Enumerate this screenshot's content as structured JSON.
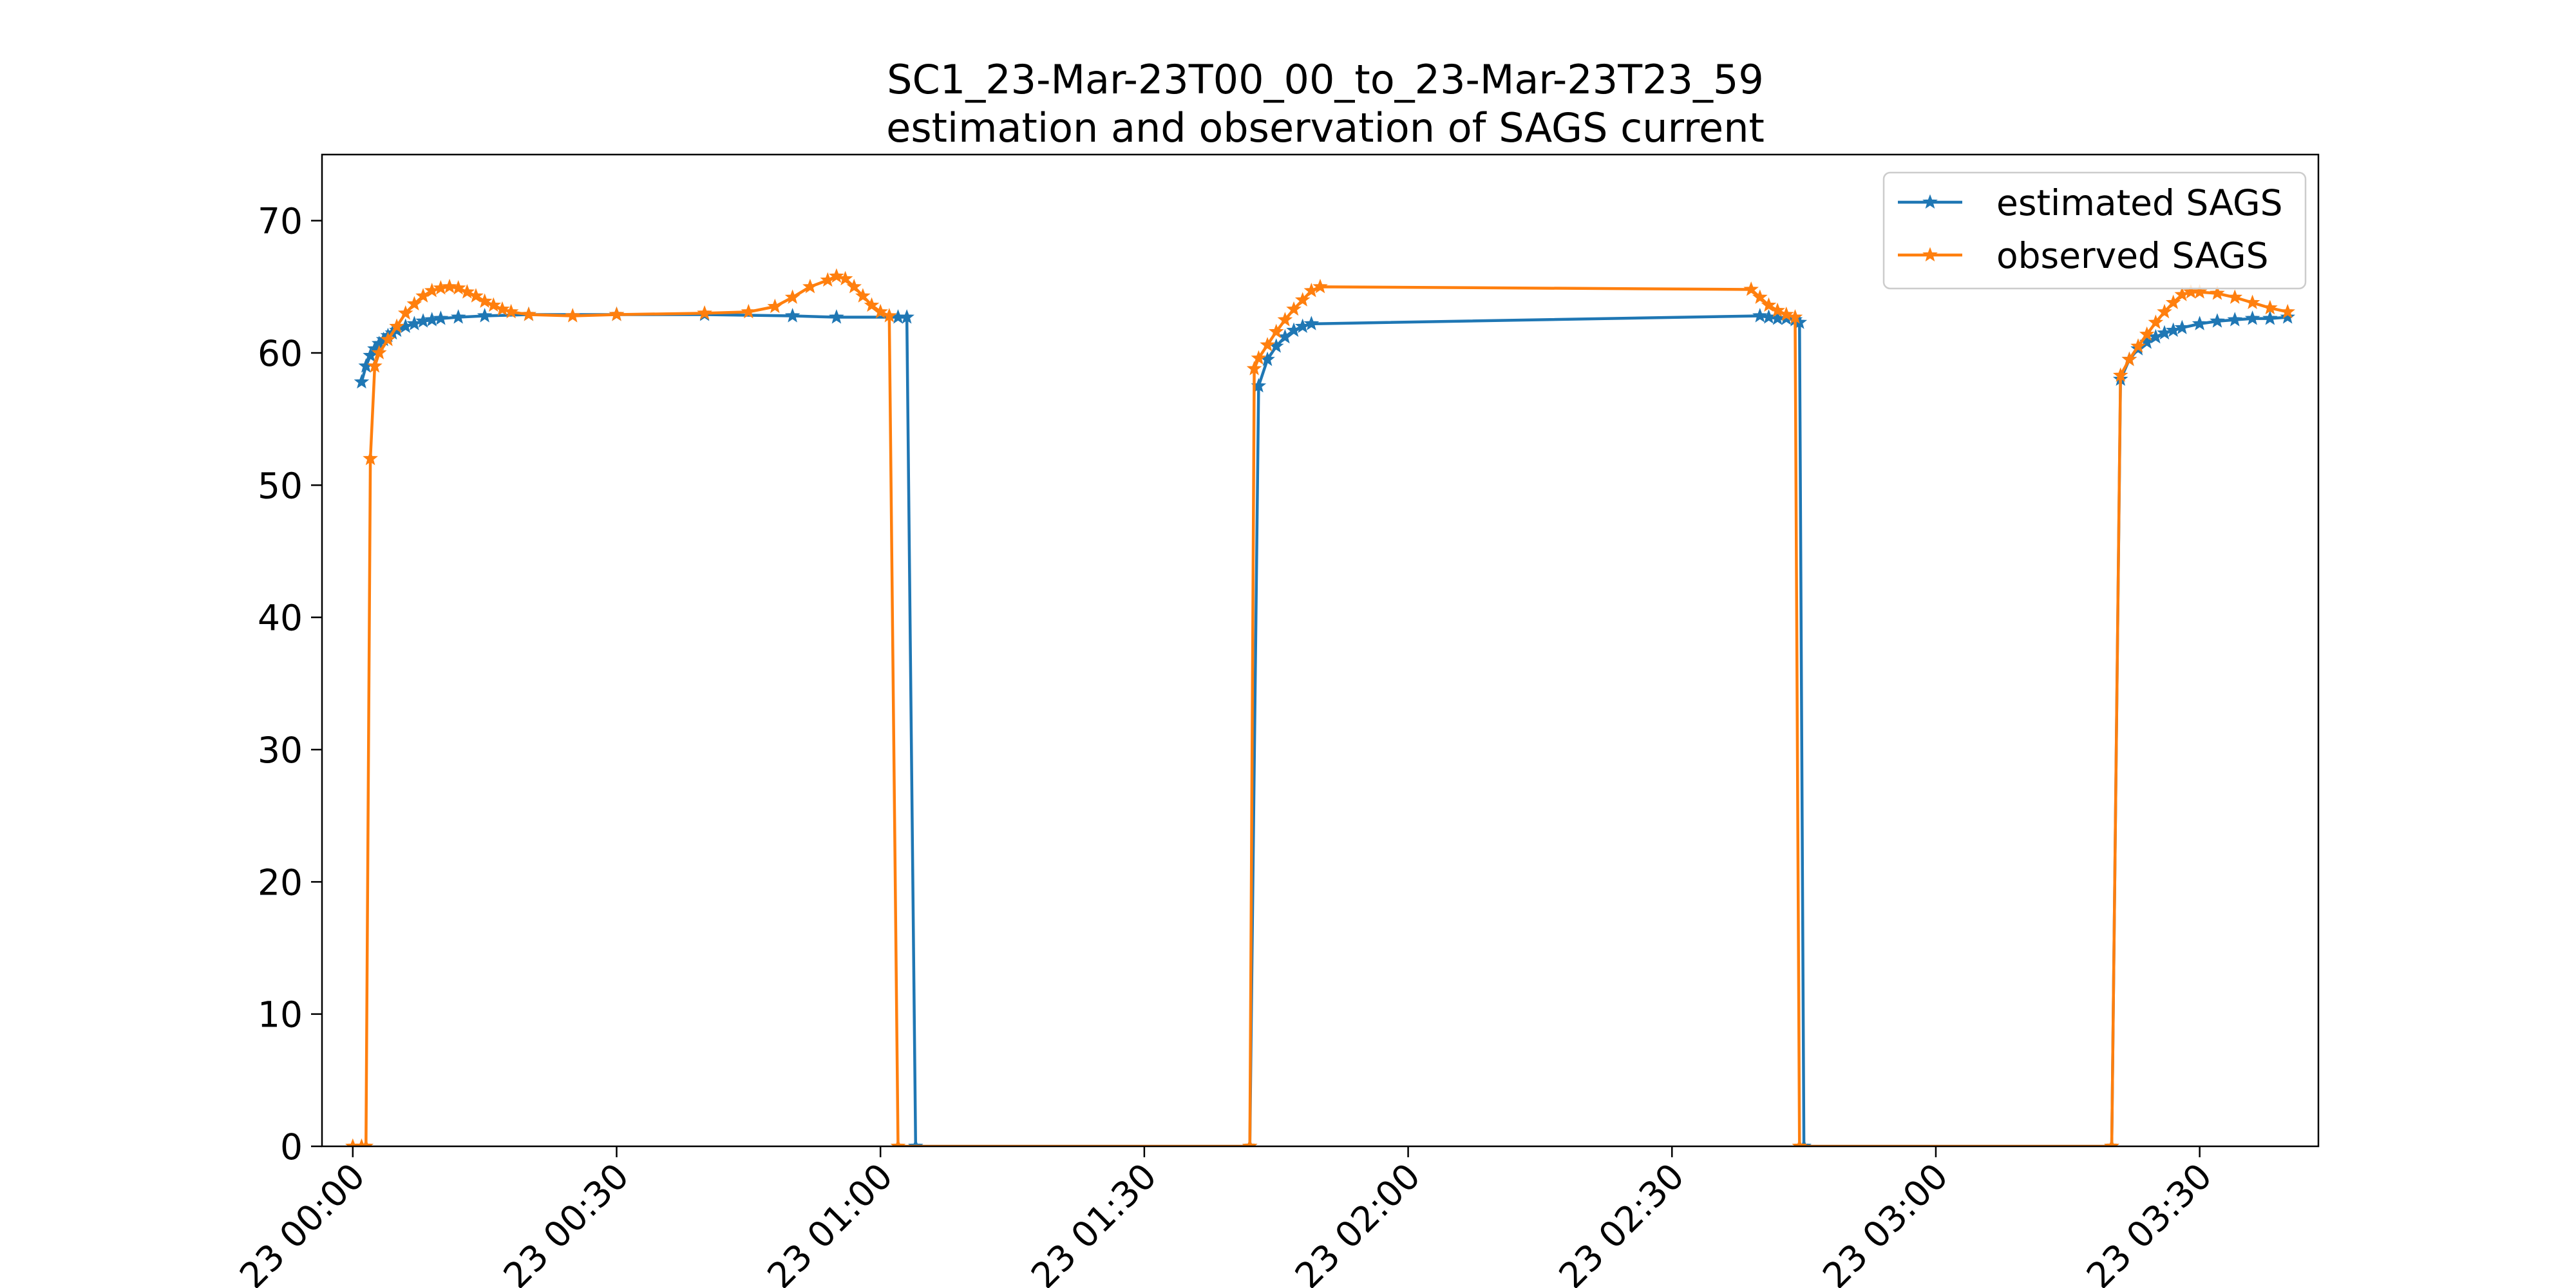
{
  "chart_data": {
    "type": "line",
    "title": "SC1_23-Mar-23T00_00_to_23-Mar-23T23_59\nestimation and observation of SAGS current",
    "xlabel": "",
    "ylabel": "",
    "x_axis": {
      "type": "time",
      "range": [
        "23 00:00 - 3.5min",
        "23 03:40 + 3.5min"
      ],
      "tick_labels": [
        "23 00:00",
        "23 00:30",
        "23 01:00",
        "23 01:30",
        "23 02:00",
        "23 02:30",
        "23 03:00",
        "23 03:30"
      ]
    },
    "y_axis": {
      "range": [
        0,
        75
      ],
      "tick_labels": [
        "0",
        "10",
        "20",
        "30",
        "40",
        "50",
        "60",
        "70"
      ]
    },
    "grid": false,
    "legend": {
      "placement": "top-right",
      "entries": [
        "estimated SAGS",
        "observed SAGS"
      ]
    },
    "series": [
      {
        "name": "estimated SAGS",
        "color": "#1f77b4",
        "marker": "star",
        "points": [
          [
            "23 00:01",
            57.8
          ],
          [
            "23 00:01:30",
            59.0
          ],
          [
            "23 00:02",
            59.8
          ],
          [
            "23 00:02:30",
            60.3
          ],
          [
            "23 00:03",
            60.7
          ],
          [
            "23 00:03:30",
            61.0
          ],
          [
            "23 00:04",
            61.3
          ],
          [
            "23 00:04:30",
            61.5
          ],
          [
            "23 00:05",
            61.7
          ],
          [
            "23 00:06",
            62.0
          ],
          [
            "23 00:07",
            62.2
          ],
          [
            "23 00:08",
            62.4
          ],
          [
            "23 00:09",
            62.5
          ],
          [
            "23 00:10",
            62.6
          ],
          [
            "23 00:12",
            62.7
          ],
          [
            "23 00:15",
            62.8
          ],
          [
            "23 00:20",
            62.9
          ],
          [
            "23 00:30",
            62.9
          ],
          [
            "23 00:40",
            62.9
          ],
          [
            "23 00:50",
            62.8
          ],
          [
            "23 00:55",
            62.7
          ],
          [
            "23 01:02",
            62.7
          ],
          [
            "23 01:03",
            62.7
          ],
          [
            "23 01:04",
            0
          ],
          [
            "23 01:42",
            0
          ],
          [
            "23 01:43",
            57.5
          ],
          [
            "23 01:44",
            59.5
          ],
          [
            "23 01:45",
            60.5
          ],
          [
            "23 01:46",
            61.2
          ],
          [
            "23 01:47",
            61.7
          ],
          [
            "23 01:48",
            62.0
          ],
          [
            "23 01:49",
            62.2
          ],
          [
            "23 02:40",
            62.8
          ],
          [
            "23 02:41",
            62.7
          ],
          [
            "23 02:42",
            62.6
          ],
          [
            "23 02:43",
            62.6
          ],
          [
            "23 02:44",
            62.5
          ],
          [
            "23 02:44:30",
            62.3
          ],
          [
            "23 02:45",
            0
          ],
          [
            "23 03:20",
            0
          ],
          [
            "23 03:21",
            58.0
          ],
          [
            "23 03:22",
            59.5
          ],
          [
            "23 03:23",
            60.3
          ],
          [
            "23 03:24",
            60.8
          ],
          [
            "23 03:25",
            61.2
          ],
          [
            "23 03:26",
            61.5
          ],
          [
            "23 03:27",
            61.7
          ],
          [
            "23 03:28",
            61.9
          ],
          [
            "23 03:30",
            62.2
          ],
          [
            "23 03:32",
            62.4
          ],
          [
            "23 03:34",
            62.5
          ],
          [
            "23 03:36",
            62.6
          ],
          [
            "23 03:38",
            62.6
          ],
          [
            "23 03:40",
            62.7
          ]
        ]
      },
      {
        "name": "observed SAGS",
        "color": "#ff7f0e",
        "marker": "star",
        "points": [
          [
            "23 00:00",
            0
          ],
          [
            "23 00:01",
            0
          ],
          [
            "23 00:01:30",
            0
          ],
          [
            "23 00:02",
            52.0
          ],
          [
            "23 00:02:30",
            59.0
          ],
          [
            "23 00:03",
            60.0
          ],
          [
            "23 00:04",
            61.0
          ],
          [
            "23 00:05",
            62.0
          ],
          [
            "23 00:06",
            63.0
          ],
          [
            "23 00:07",
            63.7
          ],
          [
            "23 00:08",
            64.3
          ],
          [
            "23 00:09",
            64.7
          ],
          [
            "23 00:10",
            64.9
          ],
          [
            "23 00:11",
            65.0
          ],
          [
            "23 00:12",
            64.9
          ],
          [
            "23 00:13",
            64.6
          ],
          [
            "23 00:14",
            64.3
          ],
          [
            "23 00:15",
            63.9
          ],
          [
            "23 00:16",
            63.6
          ],
          [
            "23 00:17",
            63.3
          ],
          [
            "23 00:18",
            63.1
          ],
          [
            "23 00:20",
            62.9
          ],
          [
            "23 00:25",
            62.8
          ],
          [
            "23 00:30",
            62.9
          ],
          [
            "23 00:40",
            63.0
          ],
          [
            "23 00:45",
            63.1
          ],
          [
            "23 00:48",
            63.5
          ],
          [
            "23 00:50",
            64.2
          ],
          [
            "23 00:52",
            65.0
          ],
          [
            "23 00:54",
            65.5
          ],
          [
            "23 00:55",
            65.8
          ],
          [
            "23 00:56",
            65.6
          ],
          [
            "23 00:57",
            65.0
          ],
          [
            "23 00:58",
            64.3
          ],
          [
            "23 00:59",
            63.6
          ],
          [
            "23 01:00",
            63.1
          ],
          [
            "23 01:01",
            62.8
          ],
          [
            "23 01:02",
            0
          ],
          [
            "23 01:42",
            0
          ],
          [
            "23 01:42:30",
            58.8
          ],
          [
            "23 01:43",
            59.6
          ],
          [
            "23 01:44",
            60.6
          ],
          [
            "23 01:45",
            61.6
          ],
          [
            "23 01:46",
            62.5
          ],
          [
            "23 01:47",
            63.3
          ],
          [
            "23 01:48",
            64.0
          ],
          [
            "23 01:49",
            64.7
          ],
          [
            "23 01:50",
            65.0
          ],
          [
            "23 02:39",
            64.8
          ],
          [
            "23 02:40",
            64.2
          ],
          [
            "23 02:41",
            63.6
          ],
          [
            "23 02:42",
            63.2
          ],
          [
            "23 02:43",
            62.9
          ],
          [
            "23 02:44",
            62.7
          ],
          [
            "23 02:44:30",
            0
          ],
          [
            "23 03:20",
            0
          ],
          [
            "23 03:21",
            58.3
          ],
          [
            "23 03:22",
            59.5
          ],
          [
            "23 03:23",
            60.5
          ],
          [
            "23 03:24",
            61.4
          ],
          [
            "23 03:25",
            62.3
          ],
          [
            "23 03:26",
            63.1
          ],
          [
            "23 03:27",
            63.8
          ],
          [
            "23 03:28",
            64.4
          ],
          [
            "23 03:29",
            64.6
          ],
          [
            "23 03:30",
            64.6
          ],
          [
            "23 03:32",
            64.5
          ],
          [
            "23 03:34",
            64.2
          ],
          [
            "23 03:36",
            63.8
          ],
          [
            "23 03:38",
            63.4
          ],
          [
            "23 03:40",
            63.1
          ]
        ]
      }
    ]
  }
}
